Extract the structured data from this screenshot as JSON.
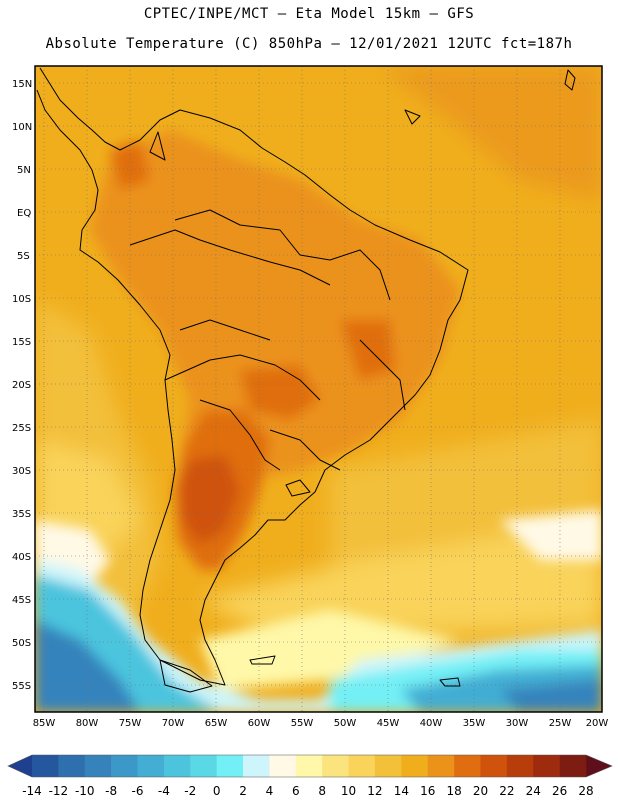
{
  "header": {
    "line1": "CPTEC/INPE/MCT –  Eta Model 15km – GFS",
    "line2": "Absolute Temperature (C) 850hPa – 12/01/2021 12UTC fct=187h"
  },
  "map": {
    "lat_labels": [
      "15N",
      "10N",
      "5N",
      "EQ",
      "5S",
      "10S",
      "15S",
      "20S",
      "25S",
      "30S",
      "35S",
      "40S",
      "45S",
      "50S",
      "55S"
    ],
    "lon_labels": [
      "85W",
      "80W",
      "75W",
      "70W",
      "65W",
      "60W",
      "55W",
      "50W",
      "45W",
      "40W",
      "35W",
      "30W",
      "25W",
      "20W"
    ]
  },
  "colorbar": {
    "ticks": [
      "-14",
      "-12",
      "-10",
      "-8",
      "-6",
      "-4",
      "-2",
      "0",
      "2",
      "4",
      "6",
      "8",
      "10",
      "12",
      "14",
      "16",
      "18",
      "20",
      "22",
      "24",
      "26",
      "28"
    ],
    "colors": [
      "#1f3f8f",
      "#25579e",
      "#2e6fae",
      "#3683bc",
      "#3c98c9",
      "#43add3",
      "#4cc4de",
      "#5ad8e6",
      "#73f0f5",
      "#cdf5fb",
      "#fff9e6",
      "#fef8a8",
      "#fbe37d",
      "#f9d35a",
      "#f3c03a",
      "#f0ae1d",
      "#eb921a",
      "#e06e10",
      "#cf530c",
      "#b73e0a",
      "#9e2b0d",
      "#7d1c11",
      "#5f0f1a"
    ]
  },
  "fill_colors": {
    "ocean_north": "#f0ae1d",
    "ocean_mid": "#f3c03a",
    "land_warm": "#eb921a",
    "hot_core": "#cf530c",
    "cool_band": "#fef8a8",
    "cold_south": "#43add3",
    "coldest": "#2e6fae"
  }
}
